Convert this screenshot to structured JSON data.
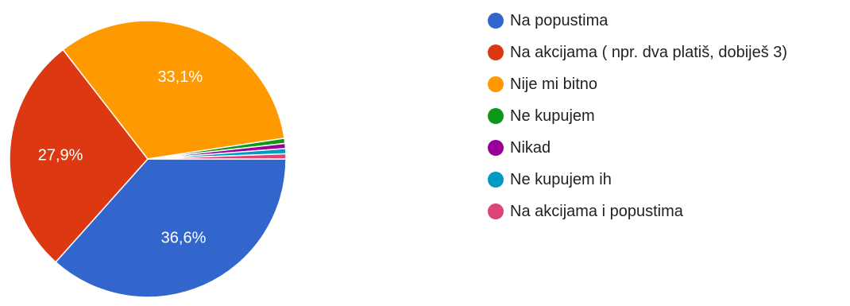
{
  "chart_data": {
    "type": "pie",
    "title": "",
    "categories": [
      "Na popustima",
      "Na akcijama ( npr. dva platiš, dobiješ 3)",
      "Nije mi bitno",
      "Ne kupujem",
      "Nikad",
      "Ne kupujem ih",
      "Na akcijama i popustima"
    ],
    "values": [
      36.6,
      27.9,
      33.1,
      0.6,
      0.6,
      0.6,
      0.6
    ],
    "labels": [
      "36,6%",
      "27,9%",
      "33,1%",
      "",
      "",
      "",
      ""
    ],
    "colors": [
      "#3366cc",
      "#dc3912",
      "#ff9900",
      "#109618",
      "#990099",
      "#0099c6",
      "#dd4477"
    ],
    "legend_position": "right",
    "start_angle_deg": 90,
    "direction": "clockwise"
  }
}
